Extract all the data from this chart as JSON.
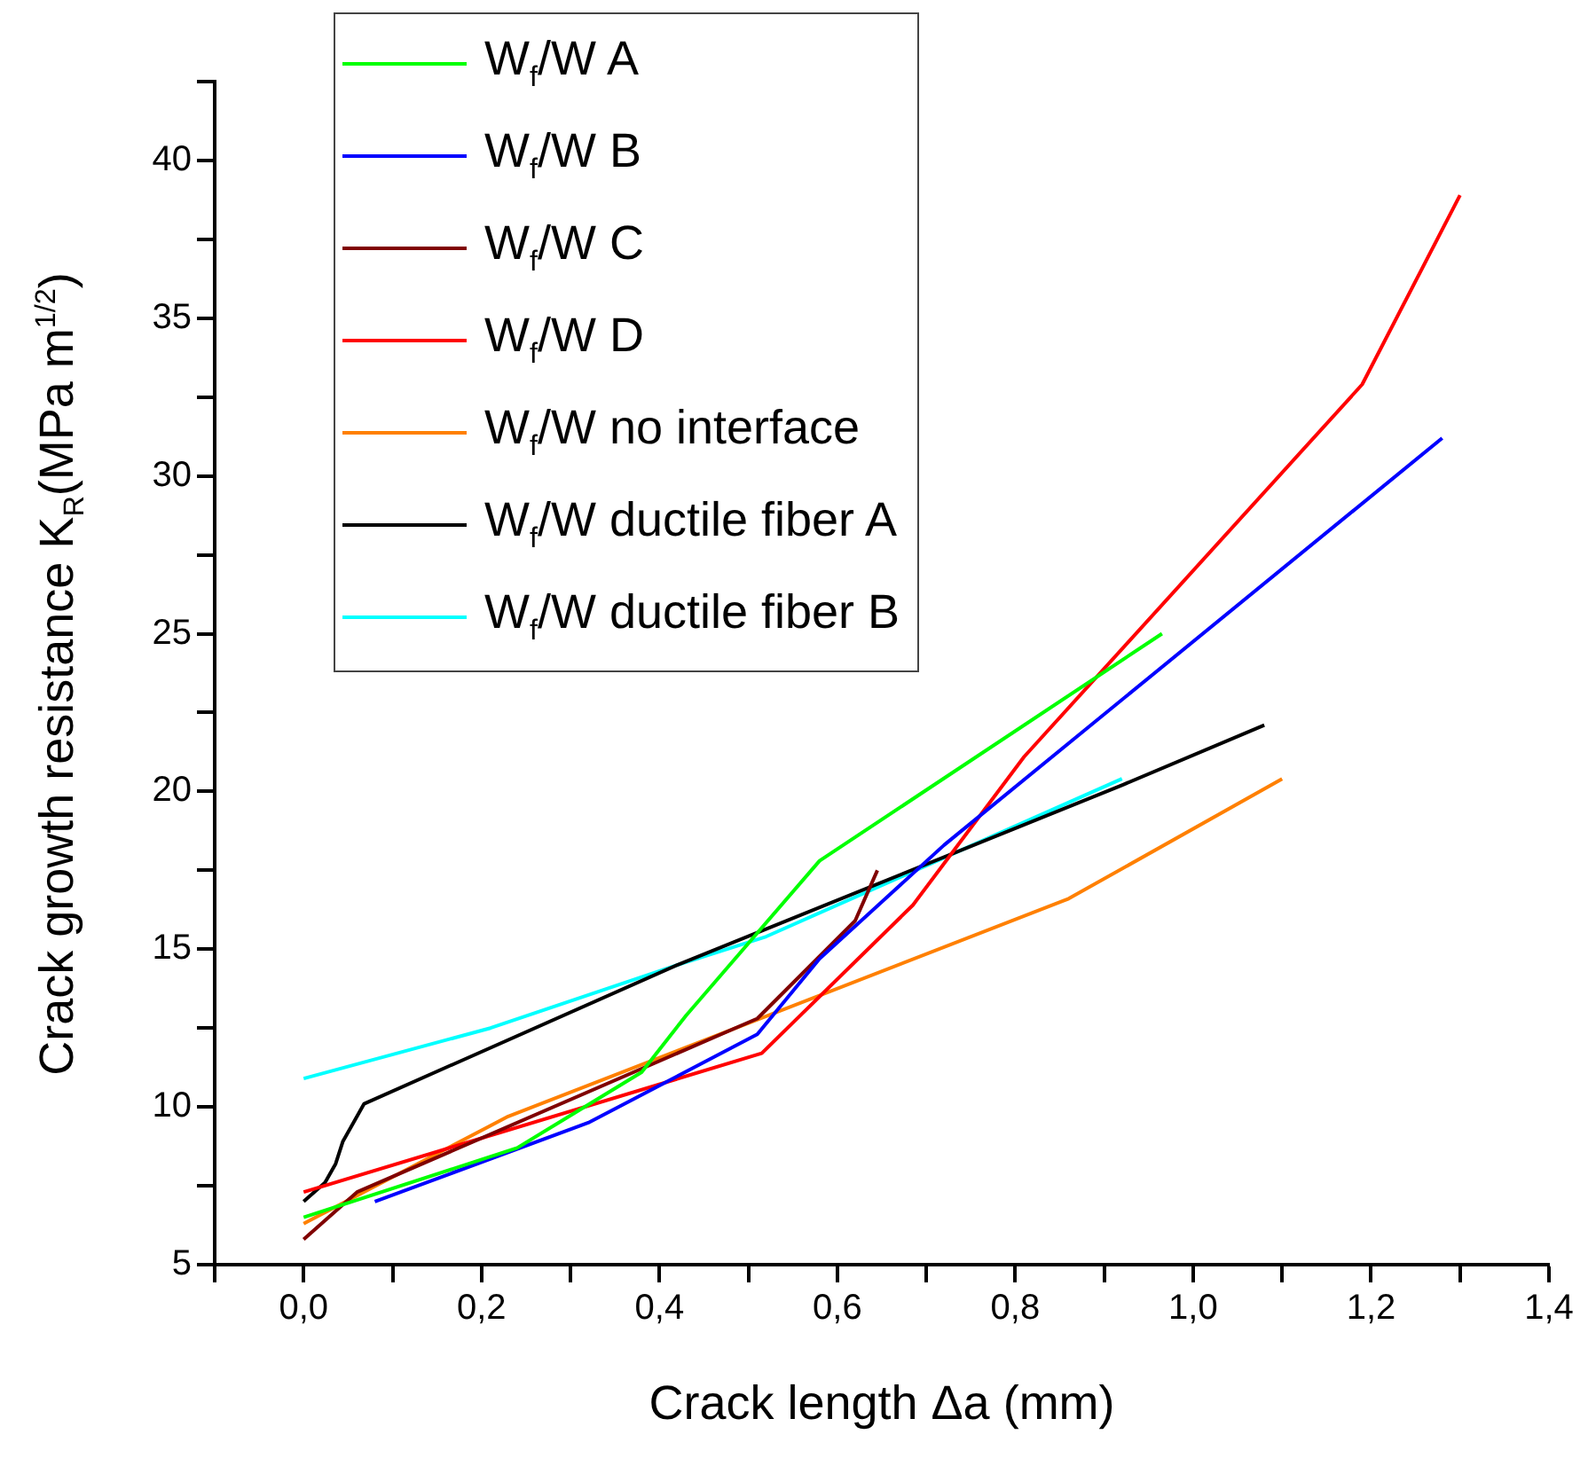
{
  "chart_data": {
    "type": "line",
    "xlabel": "Crack length Δa (mm)",
    "ylabel": "Crack growth resistance K$_{R}$(MPa m$^{1/2}$)",
    "xlim": [
      -0.1,
      1.4
    ],
    "xticks": [
      {
        "value": -0.1,
        "label": null
      },
      {
        "value": 0,
        "label": "0,0"
      },
      {
        "value": 0.1,
        "label": null
      },
      {
        "value": 0.2,
        "label": "0,2"
      },
      {
        "value": 0.3,
        "label": null
      },
      {
        "value": 0.4,
        "label": "0,4"
      },
      {
        "value": 0.5,
        "label": null
      },
      {
        "value": 0.6,
        "label": "0,6"
      },
      {
        "value": 0.7,
        "label": null
      },
      {
        "value": 0.8,
        "label": "0,8"
      },
      {
        "value": 0.9,
        "label": null
      },
      {
        "value": 1.0,
        "label": "1,0"
      },
      {
        "value": 1.1,
        "label": null
      },
      {
        "value": 1.2,
        "label": "1,2"
      },
      {
        "value": 1.3,
        "label": null
      },
      {
        "value": 1.4,
        "label": "1,4"
      }
    ],
    "ylim": [
      5,
      42.5
    ],
    "yticks": [
      5,
      {
        "value": 7.5,
        "label": null
      },
      10,
      {
        "value": 12.5,
        "label": null
      },
      15,
      {
        "value": 17.5,
        "label": null
      },
      20,
      {
        "value": 22.5,
        "label": null
      },
      25,
      {
        "value": 27.5,
        "label": null
      },
      30,
      {
        "value": 32.5,
        "label": null
      },
      35,
      {
        "value": 37.5,
        "label": null
      },
      40,
      {
        "value": 42.5,
        "label": null
      }
    ],
    "grid": false,
    "legend": "top left",
    "marker": "none",
    "line_style": "solid",
    "series": [
      {
        "name": "W$_{f}$/W A",
        "color": "#00ff00",
        "x": [
          0,
          0.24,
          0.38,
          0.43,
          0.58,
          0.965
        ],
        "values": [
          6.5,
          8.7,
          11.1,
          12.9,
          17.8,
          25.0
        ]
      },
      {
        "name": "W$_{f}$/W B",
        "color": "#0000ff",
        "x": [
          0.08,
          0.32,
          0.51,
          0.58,
          0.72,
          1.28
        ],
        "values": [
          7.0,
          9.5,
          12.3,
          14.7,
          18.3,
          31.2
        ]
      },
      {
        "name": "W$_{f}$/W C",
        "color": "#800000",
        "x": [
          0,
          0.06,
          0.51,
          0.62,
          0.645
        ],
        "values": [
          5.8,
          7.3,
          12.8,
          15.9,
          17.5
        ]
      },
      {
        "name": "W$_{f}$/W D",
        "color": "#ff0000",
        "x": [
          0,
          0.515,
          0.685,
          0.81,
          1.19,
          1.3
        ],
        "values": [
          7.3,
          11.7,
          16.4,
          21.1,
          32.9,
          38.9
        ]
      },
      {
        "name": "W$_{f}$/W no interface",
        "color": "#ff8000",
        "x": [
          0,
          0.23,
          0.86,
          1.1
        ],
        "values": [
          6.3,
          9.7,
          16.6,
          20.4
        ]
      },
      {
        "name": "W$_{f}$/W ductile fiber A",
        "color": "#000000",
        "x": [
          0,
          0.024,
          0.036,
          0.044,
          0.068,
          0.42,
          0.92,
          1.08
        ],
        "values": [
          7.0,
          7.6,
          8.2,
          8.9,
          10.1,
          14.5,
          20.2,
          22.1
        ]
      },
      {
        "name": "W$_{f}$/W ductile fiber B",
        "color": "#00ffff",
        "x": [
          0,
          0.21,
          0.42,
          0.52,
          0.92
        ],
        "values": [
          10.9,
          12.5,
          14.5,
          15.4,
          20.4
        ]
      }
    ]
  }
}
